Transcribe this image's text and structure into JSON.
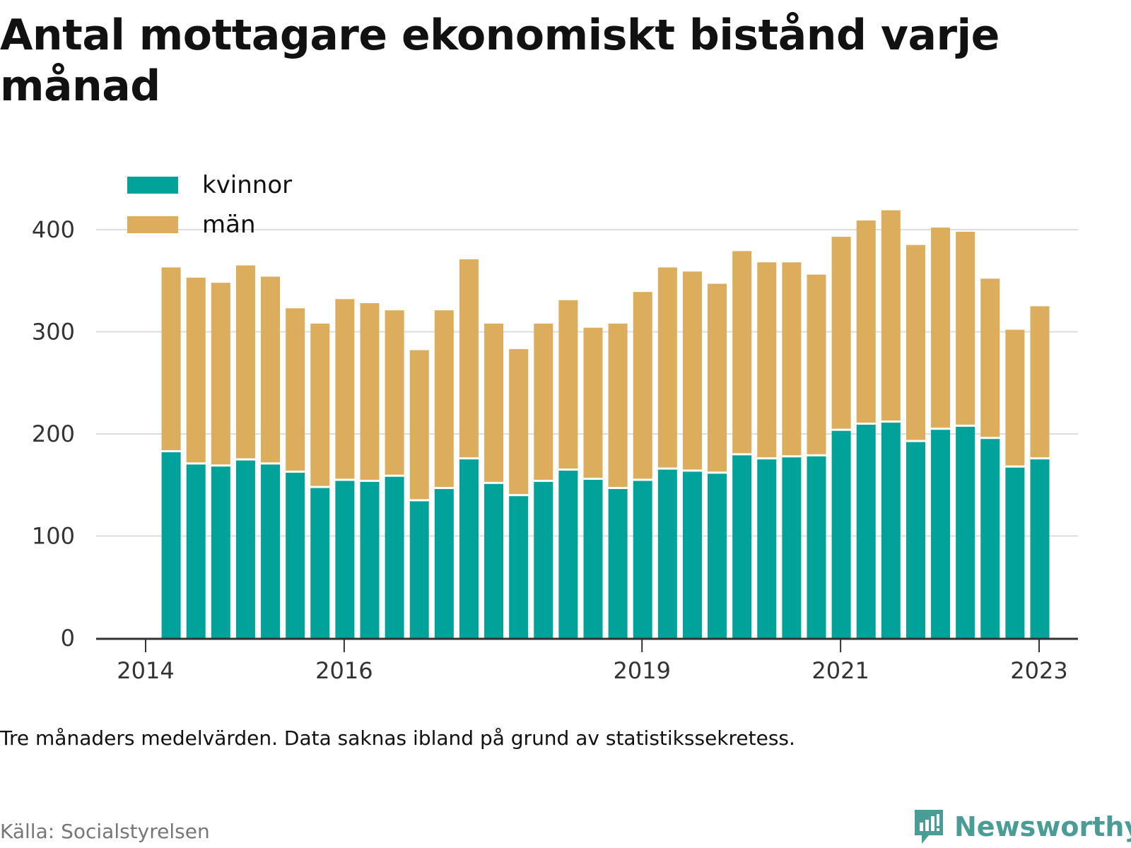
{
  "title": "Antal mottagare ekonomiskt bistånd varje månad",
  "note": "Tre månaders medelvärden. Data saknas ibland på grund av statistikssekretess.",
  "source": "Källa: Socialstyrelsen",
  "brand": {
    "name": "Newsworthy",
    "icon": "newsworthy-logo-icon",
    "color": "#4a9d96"
  },
  "colors": {
    "kvinnor": "#00a29a",
    "man": "#dbad5c",
    "grid": "#dddddd",
    "axis": "#333333"
  },
  "chart_data": {
    "type": "bar",
    "stacked": true,
    "legend_position": "top-left",
    "grid": true,
    "ylim": [
      0,
      420
    ],
    "y_ticks": [
      0,
      100,
      200,
      300,
      400
    ],
    "x_ticks": [
      "2014",
      "2016",
      "2019",
      "2021",
      "2023"
    ],
    "x_tick_dates": [
      "2014-01",
      "2016-01",
      "2019-01",
      "2021-01",
      "2023-01"
    ],
    "dates": [
      "2014-04",
      "2014-07",
      "2014-10",
      "2015-01",
      "2015-04",
      "2015-07",
      "2015-10",
      "2016-01",
      "2016-04",
      "2016-07",
      "2016-10",
      "2017-01",
      "2017-04",
      "2017-07",
      "2017-10",
      "2018-01",
      "2018-04",
      "2018-07",
      "2018-10",
      "2019-01",
      "2019-04",
      "2019-07",
      "2019-10",
      "2020-01",
      "2020-04",
      "2020-07",
      "2020-10",
      "2021-01",
      "2021-04",
      "2021-07",
      "2021-10",
      "2022-01",
      "2022-04",
      "2022-07",
      "2022-10",
      "2023-01"
    ],
    "series": [
      {
        "name": "kvinnor",
        "color": "#00a29a",
        "values": [
          182,
          170,
          168,
          174,
          170,
          162,
          147,
          154,
          153,
          158,
          134,
          146,
          175,
          151,
          139,
          153,
          164,
          155,
          146,
          154,
          165,
          163,
          161,
          179,
          175,
          177,
          178,
          203,
          209,
          211,
          192,
          204,
          207,
          195,
          167,
          175
        ]
      },
      {
        "name": "män",
        "color": "#dbad5c",
        "values": [
          181,
          183,
          180,
          191,
          184,
          161,
          161,
          178,
          175,
          163,
          148,
          175,
          196,
          157,
          144,
          155,
          167,
          149,
          162,
          185,
          198,
          196,
          186,
          200,
          193,
          191,
          178,
          190,
          200,
          208,
          193,
          198,
          191,
          157,
          135,
          150
        ]
      }
    ]
  }
}
